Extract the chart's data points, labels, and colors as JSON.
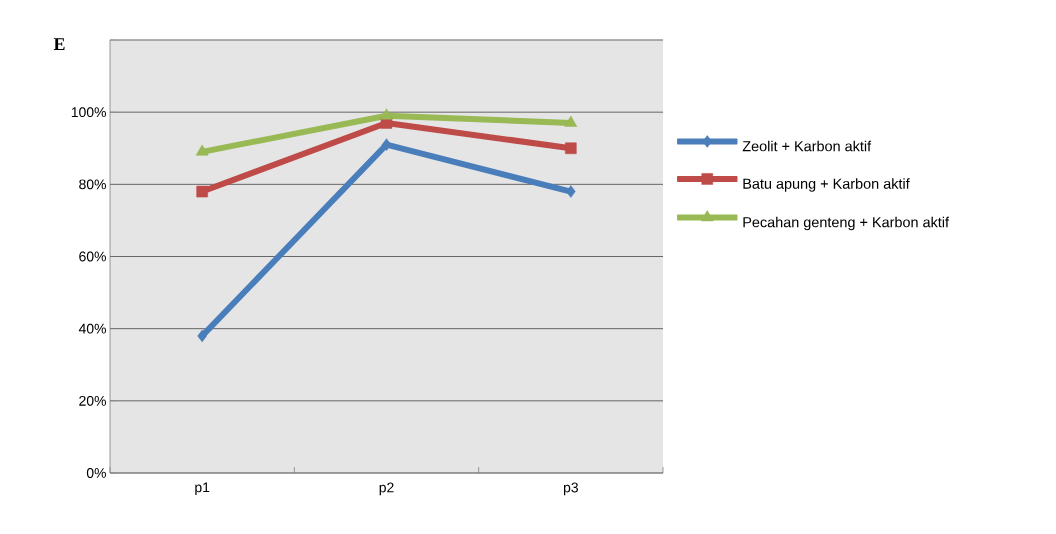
{
  "chart_data": {
    "type": "line",
    "categories": [
      "p1",
      "p2",
      "p3"
    ],
    "series": [
      {
        "name": "Zeolit + Karbon aktif",
        "color": "#4a7ebb",
        "marker": "diamond",
        "values": [
          38,
          91,
          78
        ]
      },
      {
        "name": "Batu apung + Karbon aktif",
        "color": "#be4b48",
        "marker": "square",
        "values": [
          78,
          97,
          90
        ]
      },
      {
        "name": "Pecahan genteng + Karbon aktif",
        "color": "#98b954",
        "marker": "triangle",
        "values": [
          89,
          99,
          97
        ]
      }
    ],
    "ylim": [
      0,
      120
    ],
    "yticks": [
      {
        "value": 0,
        "label": "0%"
      },
      {
        "value": 20,
        "label": "20%"
      },
      {
        "value": 40,
        "label": "40%"
      },
      {
        "value": 60,
        "label": "60%"
      },
      {
        "value": 80,
        "label": "80%"
      },
      {
        "value": 100,
        "label": "100%"
      },
      {
        "value": 120,
        "label": null
      }
    ],
    "grid": "y",
    "legend": "right",
    "line_style": "solid",
    "annotations": [
      "E"
    ]
  }
}
